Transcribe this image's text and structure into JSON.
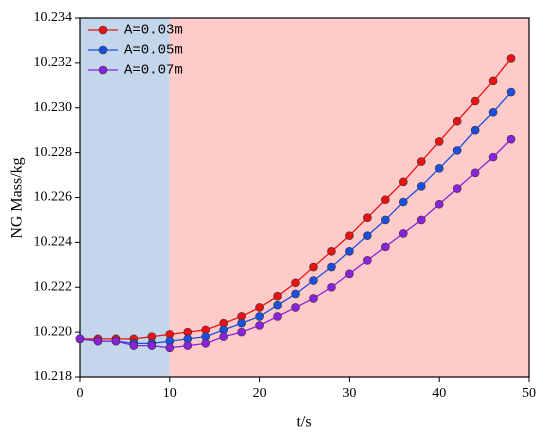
{
  "chart_data": {
    "type": "line",
    "x_label": "t/s",
    "y_label": "NG Mass/kg",
    "x": [
      0,
      2,
      4,
      6,
      8,
      10,
      12,
      14,
      16,
      18,
      20,
      22,
      24,
      26,
      28,
      30,
      32,
      34,
      36,
      38,
      40,
      42,
      44,
      46,
      48
    ],
    "series": [
      {
        "name": "A=0.03m",
        "color": "#ee1111",
        "values": [
          10.2197,
          10.2197,
          10.2197,
          10.2197,
          10.2198,
          10.2199,
          10.22,
          10.2201,
          10.2204,
          10.2207,
          10.2211,
          10.2216,
          10.2222,
          10.2229,
          10.2236,
          10.2243,
          10.2251,
          10.2259,
          10.2267,
          10.2276,
          10.2285,
          10.2294,
          10.2303,
          10.2312,
          10.2322
        ]
      },
      {
        "name": "A=0.05m",
        "color": "#1a4fe0",
        "values": [
          10.2197,
          10.2196,
          10.2196,
          10.2195,
          10.2195,
          10.2196,
          10.2197,
          10.2198,
          10.2201,
          10.2204,
          10.2207,
          10.2212,
          10.2217,
          10.2223,
          10.2229,
          10.2236,
          10.2243,
          10.225,
          10.2258,
          10.2265,
          10.2273,
          10.2281,
          10.229,
          10.2298,
          10.2307
        ]
      },
      {
        "name": "A=0.07m",
        "color": "#8a22dd",
        "values": [
          10.2197,
          10.2196,
          10.2196,
          10.2194,
          10.2194,
          10.2193,
          10.2194,
          10.2195,
          10.2198,
          10.22,
          10.2203,
          10.2207,
          10.2211,
          10.2215,
          10.222,
          10.2226,
          10.2232,
          10.2238,
          10.2244,
          10.225,
          10.2257,
          10.2264,
          10.2271,
          10.2278,
          10.2286
        ]
      }
    ],
    "regions": [
      {
        "x": [
          0,
          10
        ],
        "color": "#c4d6eb"
      },
      {
        "x": [
          10,
          50
        ],
        "color": "#ffcaca"
      }
    ],
    "xlim": [
      0,
      50
    ],
    "xticks": [
      0,
      10,
      20,
      30,
      40,
      50
    ],
    "ylim": [
      10.218,
      10.234
    ],
    "yticks": [
      10.218,
      {
        "value": 10.22,
        "label": "10.220"
      },
      10.222,
      10.224,
      10.226,
      10.228,
      {
        "value": 10.23,
        "label": "10.230"
      },
      10.232,
      10.234
    ],
    "legend": "top-left"
  }
}
